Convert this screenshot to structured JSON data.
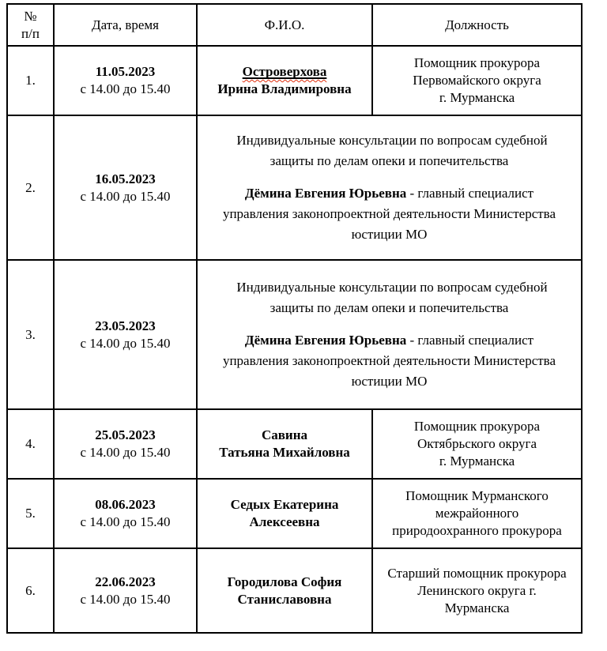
{
  "header": {
    "num": "№\nп/п",
    "datetime": "Дата, время",
    "fio": "Ф.И.О.",
    "position": "Должность"
  },
  "rows": {
    "r1": {
      "num": "1.",
      "date": "11.05.2023",
      "time": "с 14.00 до 15.40",
      "name_line1": "Островерхова",
      "name_line2": "Ирина Владимировна",
      "position": "Помощник прокурора\nПервомайского округа\nг. Мурманска"
    },
    "r2": {
      "num": "2.",
      "date": "16.05.2023",
      "time": "с 14.00 до 15.40"
    },
    "r3": {
      "num": "3.",
      "date": "23.05.2023",
      "time": "с 14.00 до 15.40"
    },
    "r4": {
      "num": "4.",
      "date": "25.05.2023",
      "time": "с 14.00 до 15.40",
      "name": "Савина\nТатьяна Михайловна",
      "position": "Помощник прокурора\nОктябрьского округа\nг. Мурманска"
    },
    "r5": {
      "num": "5.",
      "date": "08.06.2023",
      "time": "с 14.00 до 15.40",
      "name": "Седых Екатерина\nАлексеевна",
      "position": "Помощник Мурманского\nмежрайонного\nприродоохранного прокурора"
    },
    "r6": {
      "num": "6.",
      "date": "22.06.2023",
      "time": "с 14.00 до 15.40",
      "name": "Городилова София\nСтаниславовна",
      "position": "Старший помощник прокурора\nЛенинского округа г.\nМурманска"
    }
  },
  "consult": {
    "intro": "Индивидуальные консультации по вопросам судебной\nзащиты по делам опеки и попечительства",
    "name": "Дёмина Евгения Юрьевна",
    "rest": " - главный специалист\nуправления законопроектной деятельности Министерства\nюстиции МО"
  },
  "colors": {
    "border": "#000000",
    "text": "#000000",
    "spellcheck_underline": "#e03010"
  }
}
